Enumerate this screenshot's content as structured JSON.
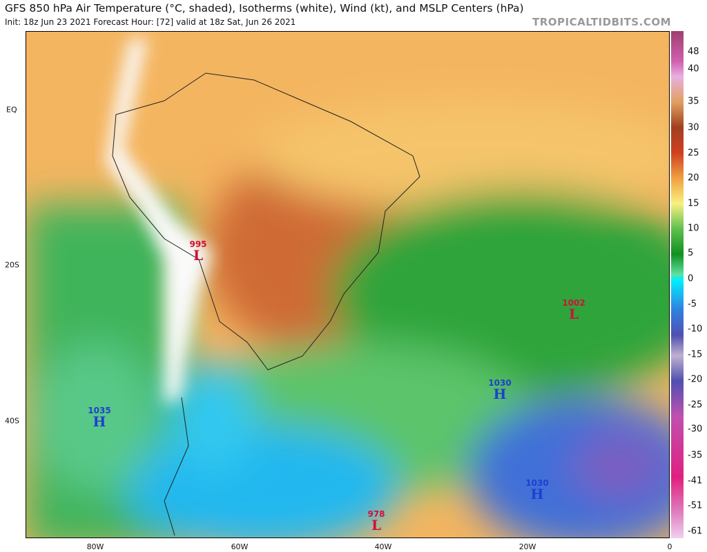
{
  "header": {
    "title": "GFS 850 hPa Air Temperature (°C, shaded), Isotherms (white), Wind (kt), and MSLP Centers (hPa)",
    "subtitle": "Init: 18z Jun 23 2021   Forecast Hour: [72]   valid at 18z Sat, Jun 26 2021",
    "brand": "TROPICALTIDBITS.COM"
  },
  "colorbar": {
    "labels": [
      "48",
      "40",
      "35",
      "30",
      "25",
      "20",
      "15",
      "10",
      "5",
      "0",
      "-5",
      "-10",
      "-15",
      "-20",
      "-25",
      "-30",
      "-35",
      "-41",
      "-51",
      "-61"
    ]
  },
  "axes": {
    "lat": [
      "EQ",
      "20S",
      "40S"
    ],
    "lon": [
      "80W",
      "60W",
      "40W",
      "20W",
      "0"
    ]
  },
  "centers": [
    {
      "type": "L",
      "value": "995"
    },
    {
      "type": "L",
      "value": "1002"
    },
    {
      "type": "H",
      "value": "1030"
    },
    {
      "type": "H",
      "value": "1035"
    },
    {
      "type": "H",
      "value": "1030"
    },
    {
      "type": "L",
      "value": "978"
    }
  ],
  "colors": {
    "low": "#d0103a",
    "high": "#1f3fcf"
  }
}
